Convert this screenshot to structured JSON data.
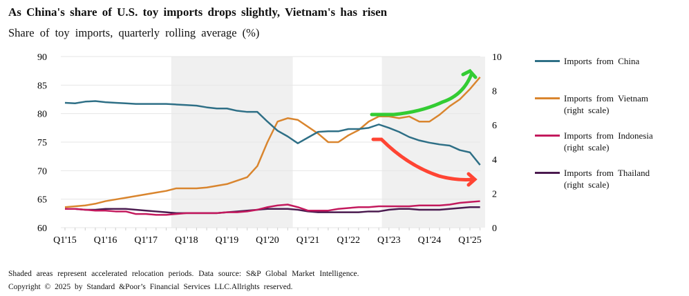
{
  "chart_data": {
    "type": "line",
    "title": "As China's share of U.S. toy imports drops slightly, Vietnam's has risen",
    "subtitle": "Share of toy imports, quarterly rolling average (%)",
    "x_tick_labels": [
      "Q1'15",
      "Q1'16",
      "Q1'17",
      "Q1'18",
      "Q1'19",
      "Q1'20",
      "Q1'21",
      "Q1'22",
      "Q1'23",
      "Q1'24",
      "Q1'25"
    ],
    "left_axis": {
      "ylim": [
        60,
        90
      ],
      "ticks": [
        60,
        65,
        70,
        75,
        80,
        85,
        90
      ]
    },
    "right_axis": {
      "ylim": [
        0,
        10
      ],
      "ticks": [
        0,
        2,
        4,
        6,
        8,
        10
      ]
    },
    "shaded_periods": [
      [
        10.5,
        22.5
      ],
      [
        31.3,
        41.5
      ]
    ],
    "series": [
      {
        "name": "Imports from China",
        "axis": "left",
        "color": "#2e6f86",
        "values": [
          81.9,
          81.8,
          82.1,
          82.2,
          82.0,
          81.9,
          81.8,
          81.7,
          81.7,
          81.7,
          81.7,
          81.6,
          81.5,
          81.4,
          81.1,
          80.9,
          80.9,
          80.5,
          80.3,
          80.3,
          78.6,
          77.0,
          76.0,
          74.8,
          75.8,
          76.8,
          76.9,
          76.9,
          77.3,
          77.3,
          77.5,
          78.1,
          77.5,
          76.8,
          75.9,
          75.3,
          74.9,
          74.6,
          74.4,
          73.6,
          73.2,
          71.0
        ]
      },
      {
        "name": "Imports from Vietnam",
        "axis": "right",
        "label2": "(right scale)",
        "color": "#d9852e",
        "values": [
          1.2,
          1.25,
          1.3,
          1.4,
          1.55,
          1.65,
          1.75,
          1.85,
          1.95,
          2.05,
          2.15,
          2.3,
          2.3,
          2.3,
          2.35,
          2.45,
          2.55,
          2.75,
          2.95,
          3.6,
          5.0,
          6.2,
          6.4,
          6.3,
          5.9,
          5.5,
          5.0,
          5.0,
          5.4,
          5.7,
          6.2,
          6.5,
          6.5,
          6.4,
          6.5,
          6.2,
          6.2,
          6.6,
          7.1,
          7.5,
          8.1,
          8.8
        ]
      },
      {
        "name": "Imports from Indonesia",
        "axis": "right",
        "label2": "(right scale)",
        "color": "#c3195d",
        "values": [
          1.1,
          1.1,
          1.05,
          1.0,
          1.0,
          0.95,
          0.95,
          0.8,
          0.8,
          0.75,
          0.75,
          0.8,
          0.85,
          0.85,
          0.85,
          0.85,
          0.9,
          0.9,
          0.95,
          1.05,
          1.2,
          1.3,
          1.35,
          1.2,
          1.0,
          1.0,
          1.0,
          1.1,
          1.15,
          1.2,
          1.2,
          1.25,
          1.25,
          1.25,
          1.25,
          1.3,
          1.3,
          1.3,
          1.35,
          1.45,
          1.5,
          1.55
        ]
      },
      {
        "name": "Imports from Thailand",
        "axis": "right",
        "label2": "(right scale)",
        "color": "#4a1a4f",
        "values": [
          1.1,
          1.1,
          1.05,
          1.05,
          1.1,
          1.1,
          1.1,
          1.05,
          1.0,
          0.95,
          0.9,
          0.85,
          0.85,
          0.85,
          0.85,
          0.85,
          0.9,
          0.95,
          1.0,
          1.05,
          1.1,
          1.1,
          1.1,
          1.05,
          0.95,
          0.9,
          0.9,
          0.9,
          0.9,
          0.9,
          0.95,
          0.95,
          1.05,
          1.1,
          1.1,
          1.05,
          1.05,
          1.05,
          1.1,
          1.15,
          1.2,
          1.2
        ]
      }
    ]
  },
  "footer": {
    "note": "Shaded areas represent accelerated relocation periods. Data source: S&P Global Market Intelligence.",
    "copyright": "Copyright © 2025 by Standard &Poor’s Financial Services LLC.Allrights reserved."
  }
}
